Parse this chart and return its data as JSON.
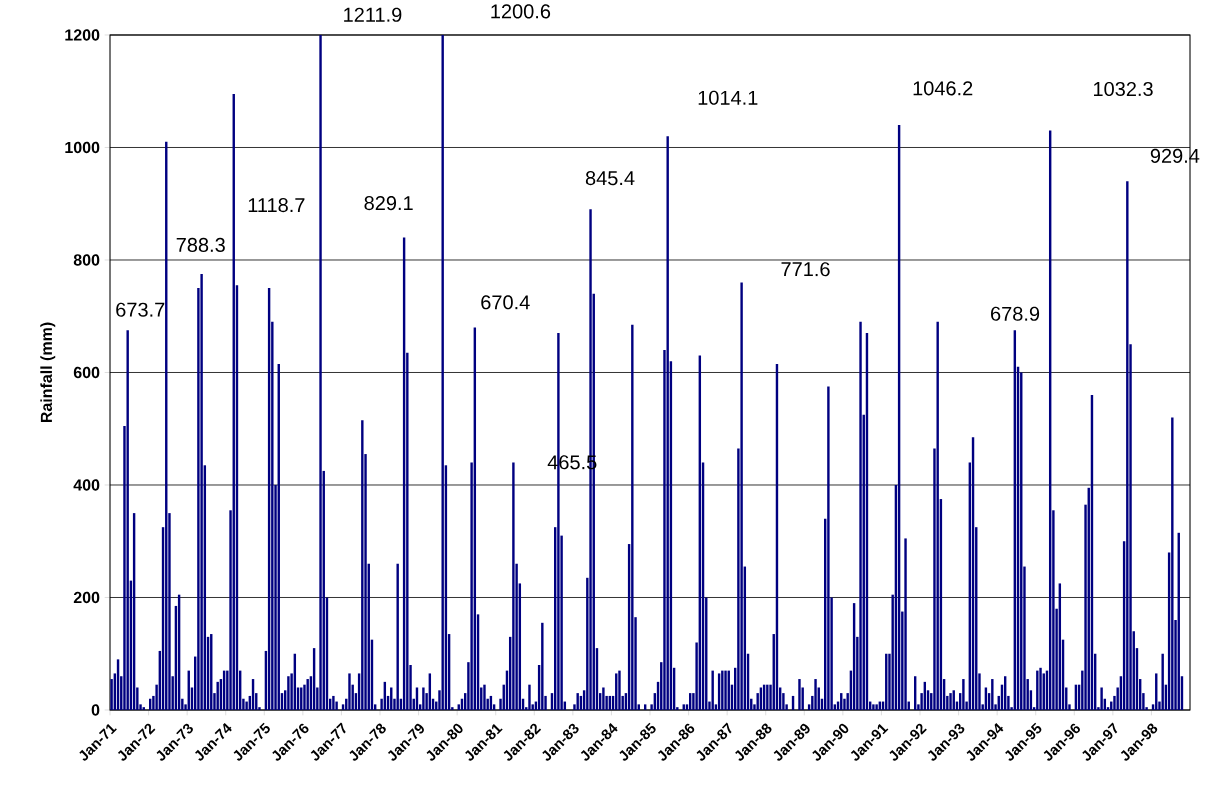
{
  "chart_data": {
    "type": "bar",
    "ylabel": "Rainfall (mm)",
    "color": "#000080",
    "grid": "y",
    "xlim": [
      "1971-01",
      "1999-01"
    ],
    "ylim": [
      0,
      1200
    ],
    "yticks": [
      0,
      200,
      400,
      600,
      800,
      1000,
      1200
    ],
    "xticks": [
      {
        "value": "1971-01",
        "label": "Jan-71"
      },
      {
        "value": "1972-01",
        "label": "Jan-72"
      },
      {
        "value": "1973-01",
        "label": "Jan-73"
      },
      {
        "value": "1974-01",
        "label": "Jan-74"
      },
      {
        "value": "1975-01",
        "label": "Jan-75"
      },
      {
        "value": "1976-01",
        "label": "Jan-76"
      },
      {
        "value": "1977-01",
        "label": "Jan-77"
      },
      {
        "value": "1978-01",
        "label": "Jan-78"
      },
      {
        "value": "1979-01",
        "label": "Jan-79"
      },
      {
        "value": "1980-01",
        "label": "Jan-80"
      },
      {
        "value": "1981-01",
        "label": "Jan-81"
      },
      {
        "value": "1982-01",
        "label": "Jan-82"
      },
      {
        "value": "1983-01",
        "label": "Jan-83"
      },
      {
        "value": "1984-01",
        "label": "Jan-84"
      },
      {
        "value": "1985-01",
        "label": "Jan-85"
      },
      {
        "value": "1986-01",
        "label": "Jan-86"
      },
      {
        "value": "1987-01",
        "label": "Jan-87"
      },
      {
        "value": "1988-01",
        "label": "Jan-88"
      },
      {
        "value": "1989-01",
        "label": "Jan-89"
      },
      {
        "value": "1990-01",
        "label": "Jan-90"
      },
      {
        "value": "1991-01",
        "label": "Jan-91"
      },
      {
        "value": "1992-01",
        "label": "Jan-92"
      },
      {
        "value": "1993-01",
        "label": "Jan-93"
      },
      {
        "value": "1994-01",
        "label": "Jan-94"
      },
      {
        "value": "1995-01",
        "label": "Jan-95"
      },
      {
        "value": "1996-01",
        "label": "Jan-96"
      },
      {
        "value": "1997-01",
        "label": "Jan-97"
      },
      {
        "value": "1998-01",
        "label": "Jan-98"
      }
    ],
    "x": [
      "1971-01",
      "1971-02",
      "1971-03",
      "1971-04",
      "1971-05",
      "1971-06",
      "1971-07",
      "1971-08",
      "1971-09",
      "1971-10",
      "1971-11",
      "1971-12",
      "1972-01",
      "1972-02",
      "1972-03",
      "1972-04",
      "1972-05",
      "1972-06",
      "1972-07",
      "1972-08",
      "1972-09",
      "1972-10",
      "1972-11",
      "1972-12",
      "1973-01",
      "1973-02",
      "1973-03",
      "1973-04",
      "1973-05",
      "1973-06",
      "1973-07",
      "1973-08",
      "1973-09",
      "1973-10",
      "1973-11",
      "1973-12",
      "1974-01",
      "1974-02",
      "1974-03",
      "1974-04",
      "1974-05",
      "1974-06",
      "1974-07",
      "1974-08",
      "1974-09",
      "1974-10",
      "1974-11",
      "1974-12",
      "1975-01",
      "1975-02",
      "1975-03",
      "1975-04",
      "1975-05",
      "1975-06",
      "1975-07",
      "1975-08",
      "1975-09",
      "1975-10",
      "1975-11",
      "1975-12",
      "1976-01",
      "1976-02",
      "1976-03",
      "1976-04",
      "1976-05",
      "1976-06",
      "1976-07",
      "1976-08",
      "1976-09",
      "1976-10",
      "1976-11",
      "1976-12",
      "1977-01",
      "1977-02",
      "1977-03",
      "1977-04",
      "1977-05",
      "1977-06",
      "1977-07",
      "1977-08",
      "1977-09",
      "1977-10",
      "1977-11",
      "1977-12",
      "1978-01",
      "1978-02",
      "1978-03",
      "1978-04",
      "1978-05",
      "1978-06",
      "1978-07",
      "1978-08",
      "1978-09",
      "1978-10",
      "1978-11",
      "1978-12",
      "1979-01",
      "1979-02",
      "1979-03",
      "1979-04",
      "1979-05",
      "1979-06",
      "1979-07",
      "1979-08",
      "1979-09",
      "1979-10",
      "1979-11",
      "1979-12",
      "1980-01",
      "1980-02",
      "1980-03",
      "1980-04",
      "1980-05",
      "1980-06",
      "1980-07",
      "1980-08",
      "1980-09",
      "1980-10",
      "1980-11",
      "1980-12",
      "1981-01",
      "1981-02",
      "1981-03",
      "1981-04",
      "1981-05",
      "1981-06",
      "1981-07",
      "1981-08",
      "1981-09",
      "1981-10",
      "1981-11",
      "1981-12",
      "1982-01",
      "1982-02",
      "1982-03",
      "1982-04",
      "1982-05",
      "1982-06",
      "1982-07",
      "1982-08",
      "1982-09",
      "1982-10",
      "1982-11",
      "1982-12",
      "1983-01",
      "1983-02",
      "1983-03",
      "1983-04",
      "1983-05",
      "1983-06",
      "1983-07",
      "1983-08",
      "1983-09",
      "1983-10",
      "1983-11",
      "1983-12",
      "1984-01",
      "1984-02",
      "1984-03",
      "1984-04",
      "1984-05",
      "1984-06",
      "1984-07",
      "1984-08",
      "1984-09",
      "1984-10",
      "1984-11",
      "1984-12",
      "1985-01",
      "1985-02",
      "1985-03",
      "1985-04",
      "1985-05",
      "1985-06",
      "1985-07",
      "1985-08",
      "1985-09",
      "1985-10",
      "1985-11",
      "1985-12",
      "1986-01",
      "1986-02",
      "1986-03",
      "1986-04",
      "1986-05",
      "1986-06",
      "1986-07",
      "1986-08",
      "1986-09",
      "1986-10",
      "1986-11",
      "1986-12",
      "1987-01",
      "1987-02",
      "1987-03",
      "1987-04",
      "1987-05",
      "1987-06",
      "1987-07",
      "1987-08",
      "1987-09",
      "1987-10",
      "1987-11",
      "1987-12",
      "1988-01",
      "1988-02",
      "1988-03",
      "1988-04",
      "1988-05",
      "1988-06",
      "1988-07",
      "1988-08",
      "1988-09",
      "1988-10",
      "1988-11",
      "1988-12",
      "1989-01",
      "1989-02",
      "1989-03",
      "1989-04",
      "1989-05",
      "1989-06",
      "1989-07",
      "1989-08",
      "1989-09",
      "1989-10",
      "1989-11",
      "1989-12",
      "1990-01",
      "1990-02",
      "1990-03",
      "1990-04",
      "1990-05",
      "1990-06",
      "1990-07",
      "1990-08",
      "1990-09",
      "1990-10",
      "1990-11",
      "1990-12",
      "1991-01",
      "1991-02",
      "1991-03",
      "1991-04",
      "1991-05",
      "1991-06",
      "1991-07",
      "1991-08",
      "1991-09",
      "1991-10",
      "1991-11",
      "1991-12",
      "1992-01",
      "1992-02",
      "1992-03",
      "1992-04",
      "1992-05",
      "1992-06",
      "1992-07",
      "1992-08",
      "1992-09",
      "1992-10",
      "1992-11",
      "1992-12",
      "1993-01",
      "1993-02",
      "1993-03",
      "1993-04",
      "1993-05",
      "1993-06",
      "1993-07",
      "1993-08",
      "1993-09",
      "1993-10",
      "1993-11",
      "1993-12",
      "1994-01",
      "1994-02",
      "1994-03",
      "1994-04",
      "1994-05",
      "1994-06",
      "1994-07",
      "1994-08",
      "1994-09",
      "1994-10",
      "1994-11",
      "1994-12",
      "1995-01",
      "1995-02",
      "1995-03",
      "1995-04",
      "1995-05",
      "1995-06",
      "1995-07",
      "1995-08",
      "1995-09",
      "1995-10",
      "1995-11",
      "1995-12",
      "1996-01",
      "1996-02",
      "1996-03",
      "1996-04",
      "1996-05",
      "1996-06",
      "1996-07",
      "1996-08",
      "1996-09",
      "1996-10",
      "1996-11",
      "1996-12",
      "1997-01",
      "1997-02",
      "1997-03",
      "1997-04",
      "1997-05",
      "1997-06",
      "1997-07",
      "1997-08",
      "1997-09",
      "1997-10",
      "1997-11",
      "1997-12",
      "1998-01",
      "1998-02",
      "1998-03",
      "1998-04",
      "1998-05",
      "1998-06",
      "1998-07",
      "1998-08",
      "1998-09",
      "1998-10",
      "1998-11",
      "1998-12"
    ],
    "values": [
      55,
      65,
      90,
      60,
      505,
      675,
      230,
      350,
      40,
      10,
      5,
      0,
      20,
      25,
      45,
      105,
      325,
      1010,
      350,
      60,
      185,
      205,
      20,
      10,
      70,
      40,
      95,
      750,
      775,
      435,
      130,
      135,
      30,
      50,
      55,
      70,
      70,
      355,
      1095,
      755,
      70,
      20,
      15,
      25,
      55,
      30,
      5,
      0,
      105,
      750,
      690,
      400,
      615,
      30,
      35,
      60,
      65,
      100,
      40,
      40,
      45,
      55,
      60,
      110,
      40,
      1200,
      425,
      200,
      20,
      25,
      15,
      0,
      10,
      20,
      65,
      45,
      30,
      65,
      515,
      455,
      260,
      125,
      10,
      0,
      20,
      50,
      25,
      40,
      20,
      260,
      20,
      840,
      635,
      80,
      20,
      40,
      10,
      40,
      30,
      65,
      20,
      15,
      35,
      1200,
      435,
      135,
      5,
      0,
      10,
      20,
      30,
      85,
      440,
      680,
      170,
      40,
      45,
      20,
      25,
      10,
      0,
      20,
      45,
      70,
      130,
      440,
      260,
      225,
      20,
      5,
      45,
      10,
      15,
      80,
      155,
      25,
      0,
      30,
      325,
      670,
      310,
      15,
      0,
      0,
      10,
      30,
      25,
      35,
      235,
      890,
      740,
      110,
      30,
      40,
      25,
      25,
      25,
      65,
      70,
      25,
      30,
      295,
      685,
      165,
      10,
      0,
      10,
      0,
      10,
      30,
      50,
      85,
      640,
      1020,
      620,
      75,
      5,
      0,
      10,
      10,
      30,
      30,
      120,
      630,
      440,
      200,
      15,
      70,
      10,
      65,
      70,
      70,
      70,
      45,
      75,
      465,
      760,
      255,
      100,
      20,
      10,
      30,
      40,
      45,
      45,
      45,
      135,
      615,
      40,
      30,
      10,
      0,
      25,
      0,
      55,
      40,
      0,
      10,
      25,
      55,
      40,
      20,
      340,
      575,
      200,
      10,
      15,
      30,
      20,
      30,
      70,
      190,
      130,
      690,
      525,
      670,
      15,
      10,
      10,
      15,
      15,
      100,
      100,
      205,
      400,
      1040,
      175,
      305,
      15,
      0,
      60,
      10,
      30,
      50,
      35,
      30,
      465,
      690,
      375,
      55,
      25,
      30,
      35,
      15,
      30,
      55,
      15,
      440,
      485,
      325,
      65,
      10,
      40,
      30,
      55,
      10,
      25,
      45,
      60,
      25,
      5,
      675,
      610,
      600,
      255,
      55,
      35,
      5,
      70,
      75,
      65,
      70,
      1030,
      355,
      180,
      225,
      125,
      40,
      10,
      0,
      45,
      45,
      70,
      365,
      395,
      560,
      100,
      5,
      40,
      20,
      5,
      15,
      25,
      40,
      60,
      300,
      940,
      650,
      140,
      110,
      55,
      30,
      5,
      0,
      10,
      65,
      15,
      100,
      45,
      280,
      520,
      160,
      315,
      60,
      0,
      0
    ],
    "annotations": [
      "673.7",
      "788.3",
      "1118.7",
      "1211.9",
      "829.1",
      "1200.6",
      "670.4",
      "465.5",
      "845.4",
      "1014.1",
      "771.6",
      "1046.2",
      "678.9",
      "1032.3",
      "929.4"
    ]
  }
}
